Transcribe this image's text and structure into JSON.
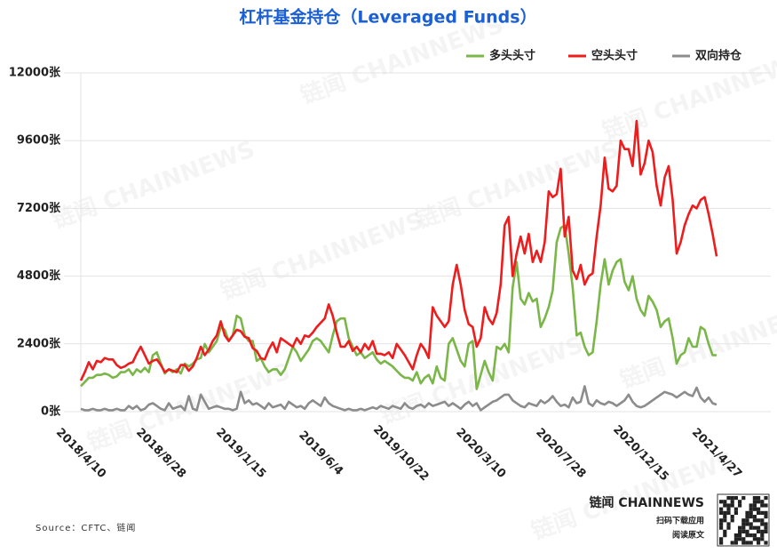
{
  "chart_data": {
    "type": "line",
    "title": "杠杆基金持仓（Leveraged Funds）",
    "categories": [
      "2018/4/10",
      null,
      null,
      null,
      null,
      null,
      null,
      null,
      null,
      null,
      null,
      null,
      null,
      null,
      null,
      null,
      null,
      null,
      null,
      null,
      "2018/8/28",
      null,
      null,
      null,
      null,
      null,
      null,
      null,
      null,
      null,
      null,
      null,
      null,
      null,
      null,
      null,
      null,
      null,
      null,
      null,
      "2019/1/15",
      null,
      null,
      null,
      null,
      null,
      null,
      null,
      null,
      null,
      null,
      null,
      null,
      null,
      null,
      null,
      null,
      null,
      null,
      null,
      "2019/6/4",
      null,
      null,
      null,
      null,
      null,
      null,
      null,
      null,
      null,
      null,
      null,
      null,
      null,
      null,
      null,
      null,
      null,
      null,
      null,
      "2019/10/22",
      null,
      null,
      null,
      null,
      null,
      null,
      null,
      null,
      null,
      null,
      null,
      null,
      null,
      null,
      null,
      null,
      null,
      null,
      null,
      "2020/3/10",
      null,
      null,
      null,
      null,
      null,
      null,
      null,
      null,
      null,
      null,
      null,
      null,
      null,
      null,
      null,
      null,
      null,
      null,
      null,
      "2020/7/28",
      null,
      null,
      null,
      null,
      null,
      null,
      null,
      null,
      null,
      null,
      null,
      null,
      null,
      null,
      null,
      null,
      null,
      null,
      null,
      "2020/12/15",
      null,
      null,
      null,
      null,
      null,
      null,
      null,
      null,
      null,
      null,
      null,
      null,
      null,
      null,
      null,
      null,
      null,
      null,
      "2021/4/27"
    ],
    "series": [
      {
        "name": "多头头寸",
        "color": "#7ab648",
        "values": [
          900,
          1050,
          1200,
          1200,
          1300,
          1300,
          1350,
          1300,
          1200,
          1250,
          1400,
          1400,
          1500,
          1300,
          1500,
          1400,
          1550,
          1400,
          2000,
          2100,
          1700,
          1350,
          1500,
          1400,
          1500,
          1350,
          1700,
          1600,
          1700,
          1850,
          1900,
          2400,
          2100,
          2300,
          2500,
          3000,
          2900,
          2500,
          2700,
          3400,
          3300,
          2700,
          2500,
          2500,
          1800,
          1900,
          1600,
          1400,
          1500,
          1500,
          1300,
          1500,
          1900,
          2300,
          2100,
          1800,
          2000,
          2200,
          2500,
          2600,
          2500,
          2300,
          2100,
          2700,
          3200,
          3300,
          3300,
          2600,
          2300,
          2000,
          2100,
          1900,
          2000,
          2100,
          1850,
          1700,
          1800,
          1700,
          1600,
          1450,
          1300,
          1200,
          1200,
          1100,
          1400,
          1000,
          1200,
          1300,
          1000,
          1600,
          1200,
          1100,
          2400,
          2600,
          2200,
          1800,
          1600,
          2400,
          2500,
          800,
          1300,
          1800,
          1400,
          1100,
          2300,
          2200,
          2400,
          2100,
          4400,
          5300,
          4000,
          3800,
          4200,
          3900,
          4000,
          3000,
          3300,
          3700,
          4300,
          6000,
          6500,
          6600,
          5600,
          4400,
          2700,
          2800,
          2300,
          2000,
          2100,
          3200,
          4500,
          5400,
          4500,
          5000,
          5300,
          5400,
          4600,
          4300,
          4800,
          4000,
          3600,
          3400,
          4100,
          3900,
          3600,
          3000,
          3200,
          3300,
          2600,
          1700,
          2000,
          2100,
          2600,
          2300,
          2300,
          3000,
          2900,
          2400,
          2000,
          2000
        ]
      },
      {
        "name": "空头头寸",
        "color": "#ee1c1c",
        "values": [
          1100,
          1400,
          1750,
          1500,
          1800,
          1750,
          1900,
          1850,
          1850,
          1650,
          1550,
          1600,
          1700,
          1750,
          2050,
          2300,
          2000,
          1700,
          1800,
          1850,
          1650,
          1400,
          1500,
          1450,
          1400,
          1650,
          1650,
          1450,
          1600,
          1900,
          2300,
          2000,
          2200,
          2500,
          2700,
          3200,
          2700,
          2500,
          2700,
          2900,
          2850,
          2650,
          2600,
          2250,
          2150,
          1900,
          1850,
          2200,
          2450,
          2100,
          2600,
          2500,
          2400,
          2300,
          2600,
          2400,
          2700,
          2650,
          2800,
          3000,
          3150,
          3300,
          3800,
          3400,
          2800,
          2300,
          2300,
          2500,
          2150,
          2300,
          2100,
          2400,
          2200,
          2500,
          2050,
          2050,
          2000,
          2100,
          1900,
          2400,
          2200,
          2000,
          1750,
          1500,
          2000,
          2400,
          2200,
          1900,
          3700,
          3400,
          3200,
          3000,
          3200,
          4500,
          5200,
          4500,
          3600,
          3100,
          3000,
          2300,
          2600,
          3700,
          3300,
          3100,
          3500,
          4500,
          6600,
          6900,
          4800,
          5600,
          6200,
          5600,
          6300,
          5300,
          5700,
          5300,
          6000,
          7800,
          7600,
          7700,
          8600,
          6200,
          6900,
          5000,
          4700,
          5200,
          4500,
          4800,
          4900,
          6200,
          7300,
          9000,
          7900,
          7800,
          8000,
          9600,
          9300,
          9300,
          8700,
          10300,
          8400,
          8800,
          9600,
          9200,
          8000,
          7300,
          8300,
          8700,
          7500,
          5600,
          6000,
          6600,
          7000,
          7300,
          7200,
          7500,
          7600,
          7000,
          6300,
          5500
        ]
      },
      {
        "name": "双向持仓",
        "color": "#8c8c8c",
        "values": [
          100,
          50,
          50,
          100,
          50,
          50,
          100,
          50,
          50,
          100,
          50,
          50,
          200,
          100,
          200,
          50,
          100,
          250,
          300,
          200,
          100,
          50,
          300,
          100,
          150,
          200,
          50,
          550,
          100,
          50,
          600,
          350,
          100,
          150,
          200,
          150,
          100,
          100,
          50,
          100,
          700,
          300,
          400,
          250,
          300,
          200,
          100,
          300,
          150,
          200,
          250,
          100,
          350,
          250,
          150,
          200,
          100,
          300,
          400,
          300,
          200,
          500,
          300,
          200,
          150,
          100,
          50,
          100,
          50,
          50,
          100,
          50,
          100,
          150,
          100,
          200,
          150,
          100,
          200,
          150,
          100,
          300,
          150,
          100,
          200,
          250,
          150,
          300,
          200,
          250,
          300,
          350,
          200,
          300,
          200,
          100,
          250,
          350,
          200,
          300,
          50,
          150,
          250,
          350,
          400,
          500,
          600,
          600,
          400,
          300,
          200,
          150,
          300,
          250,
          200,
          400,
          300,
          400,
          550,
          350,
          200,
          250,
          150,
          500,
          300,
          350,
          900,
          300,
          200,
          400,
          300,
          250,
          350,
          300,
          200,
          300,
          400,
          600,
          350,
          200,
          150,
          200,
          300,
          400,
          500,
          600,
          700,
          650,
          600,
          500,
          600,
          700,
          600,
          550,
          850,
          500,
          350,
          500,
          300,
          250
        ]
      }
    ],
    "ylim": [
      0,
      12000
    ],
    "yticks": [
      {
        "value": 0,
        "label": "0张"
      },
      {
        "value": 2400,
        "label": "2400张"
      },
      {
        "value": 4800,
        "label": "4800张"
      },
      {
        "value": 7200,
        "label": "7200张"
      },
      {
        "value": 9600,
        "label": "9600张"
      },
      {
        "value": 12000,
        "label": "12000张"
      }
    ],
    "grid": true,
    "legend": "top-right",
    "source": "Source：CFTC、链闻",
    "watermark": "链闻 CHAINNEWS",
    "logo": {
      "brand": "链闻 CHAINNEWS",
      "line1": "扫码下载应用",
      "line2": "阅读原文"
    }
  }
}
